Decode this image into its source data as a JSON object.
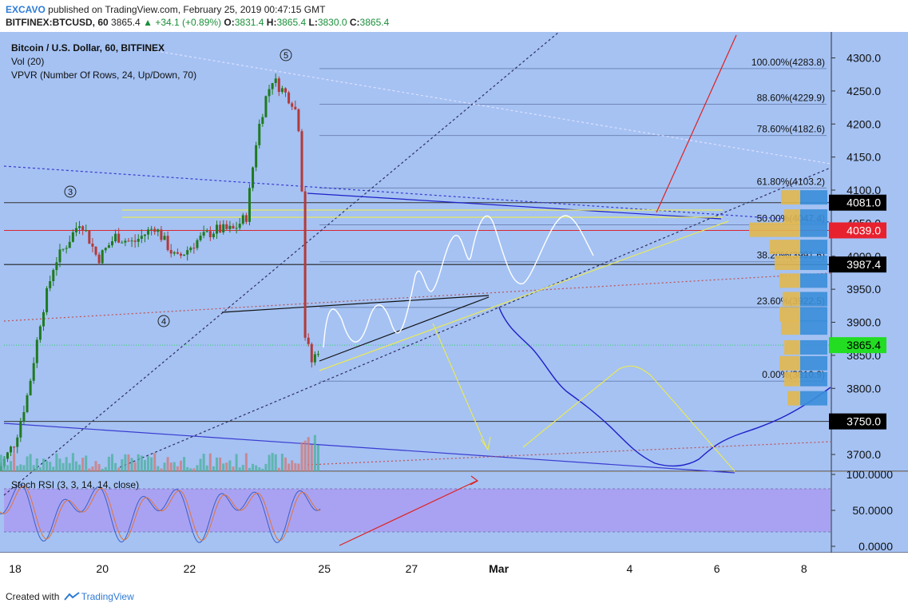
{
  "header": {
    "author": "EXCAVO",
    "published": "published on TradingView.com, February 25, 2019 00:47:15 GMT",
    "symbol": "BITFINEX:BTCUSD, 60",
    "last": "3865.4",
    "change": "+34.1 (+0.89%)",
    "o_label": "O:",
    "o": "3831.4",
    "h_label": "H:",
    "h": "3865.4",
    "l_label": "L:",
    "l": "3830.0",
    "c_label": "C:",
    "c": "3865.4"
  },
  "legend": {
    "title": "Bitcoin / U.S. Dollar, 60, BITFINEX",
    "vol": "Vol (20)",
    "vpvr": "VPVR (Number Of Rows, 24, Up/Down, 70)"
  },
  "stoch": {
    "label": "Stoch RSI (3, 3, 14, 14, close)"
  },
  "footer": {
    "created": "Created with",
    "brand": "TradingView"
  },
  "colors": {
    "background": "#a5c2f3",
    "up": "#1f7a1f",
    "down": "#b23a3a",
    "stoch_band": "#a9a2f2"
  },
  "chart_data": {
    "type": "candlestick",
    "price_axis": {
      "ticks": [
        "4300.0",
        "4250.0",
        "4200.0",
        "4150.0",
        "4100.0",
        "4050.0",
        "4000.0",
        "3950.0",
        "3900.0",
        "3850.0",
        "3800.0",
        "3750.0",
        "3700.0"
      ],
      "range": [
        3670,
        4320
      ]
    },
    "time_axis": [
      "18",
      "20",
      "22",
      "25",
      "27",
      "Mar",
      "4",
      "6",
      "8"
    ],
    "price_labels": [
      {
        "value": "4081.0",
        "color": "#000000"
      },
      {
        "value": "4039.0",
        "color": "#e8212e"
      },
      {
        "value": "3987.4",
        "color": "#000000"
      },
      {
        "value": "3865.4",
        "color": "#22dd22"
      },
      {
        "value": "3750.0",
        "color": "#000000"
      }
    ],
    "fibonacci": [
      {
        "label": "100.00%(4283.8)",
        "value": 4283.8
      },
      {
        "label": "88.60%(4229.9)",
        "value": 4229.9
      },
      {
        "label": "78.60%(4182.6)",
        "value": 4182.6
      },
      {
        "label": "61.80%(4103.2)",
        "value": 4103.2
      },
      {
        "label": "50.00%(4047.4)",
        "value": 4047.4
      },
      {
        "label": "38.20%(3991.6)",
        "value": 3991.6
      },
      {
        "label": "23.60%(3922.5)",
        "value": 3922.5
      },
      {
        "label": "0.00%(3810.9)",
        "value": 3810.9
      }
    ],
    "wave_labels": [
      "3",
      "4",
      "5"
    ],
    "stoch_axis": [
      "100.0000",
      "50.0000",
      "0.0000"
    ],
    "price_path": [
      [
        17.6,
        3675
      ],
      [
        18.0,
        3720
      ],
      [
        18.3,
        3795
      ],
      [
        18.6,
        3910
      ],
      [
        18.9,
        3990
      ],
      [
        19.2,
        4020
      ],
      [
        19.5,
        4055
      ],
      [
        19.9,
        3995
      ],
      [
        20.3,
        4030
      ],
      [
        20.7,
        4020
      ],
      [
        21.2,
        4045
      ],
      [
        21.7,
        3995
      ],
      [
        22.2,
        4025
      ],
      [
        22.6,
        4040
      ],
      [
        23.0,
        4040
      ],
      [
        23.3,
        4060
      ],
      [
        23.55,
        4185
      ],
      [
        23.75,
        4240
      ],
      [
        23.9,
        4268
      ],
      [
        24.15,
        4250
      ],
      [
        24.4,
        4230
      ],
      [
        24.55,
        4180
      ],
      [
        24.65,
        3880
      ],
      [
        24.8,
        3840
      ],
      [
        25.0,
        3865.4
      ]
    ]
  }
}
